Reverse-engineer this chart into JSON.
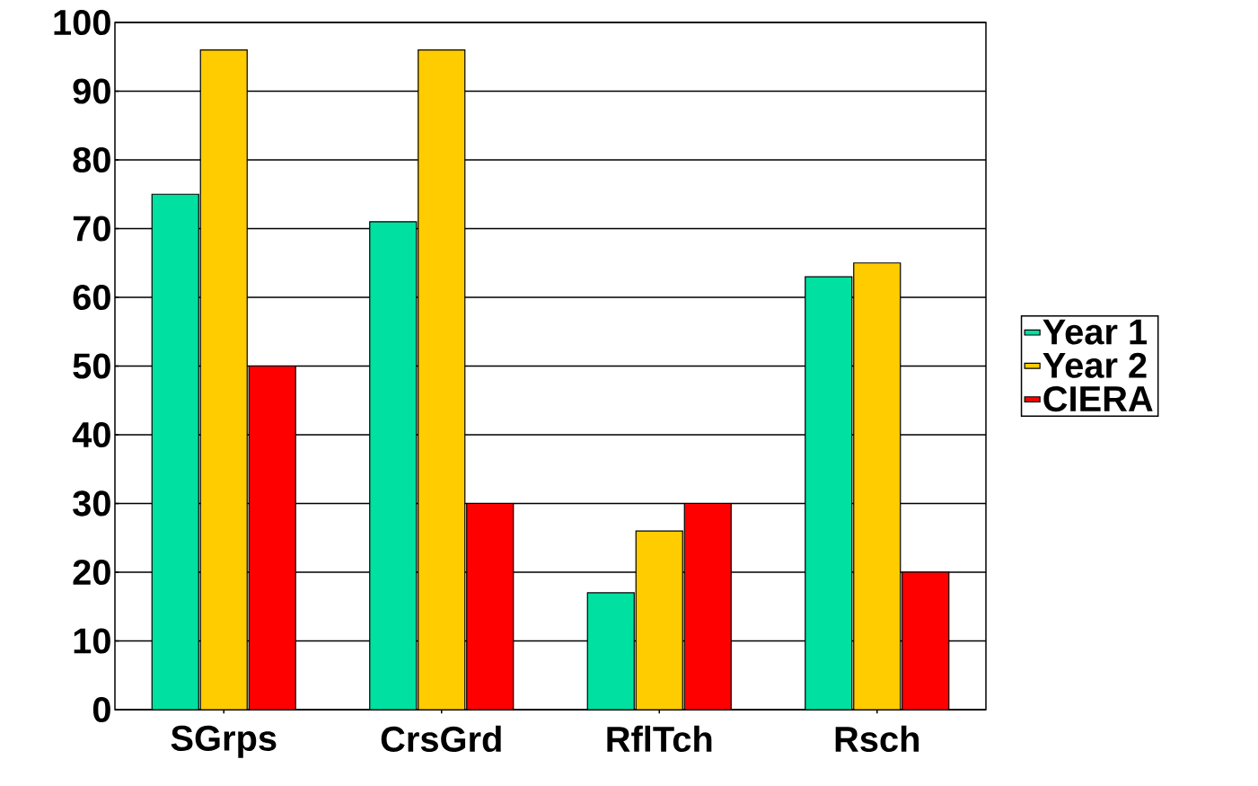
{
  "chart_data": {
    "type": "bar",
    "categories": [
      "SGrps",
      "CrsGrd",
      "RflTch",
      "Rsch"
    ],
    "series": [
      {
        "name": "Year 1",
        "color": "#00e0a0",
        "values": [
          75,
          71,
          17,
          63
        ]
      },
      {
        "name": "Year 2",
        "color": "#ffcc00",
        "values": [
          96,
          96,
          26,
          65
        ]
      },
      {
        "name": "CIERA",
        "color": "#ff0000",
        "values": [
          50,
          30,
          30,
          20
        ]
      }
    ],
    "ylim": [
      0,
      100
    ],
    "yticks": [
      0,
      10,
      20,
      30,
      40,
      50,
      60,
      70,
      80,
      90,
      100
    ],
    "grid": "y",
    "legend": "right"
  }
}
